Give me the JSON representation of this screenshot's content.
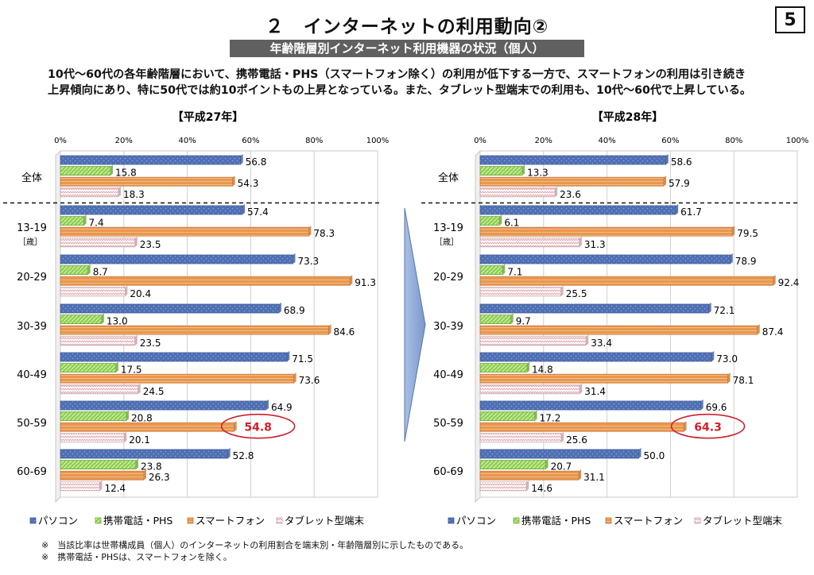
{
  "page_number": "5",
  "title": "２　インターネットの利用動向②",
  "subtitle": "年齢階層別インターネット利用機器の状況（個人）",
  "description": [
    "10代～60代の各年齢階層において、携帯電話・PHS（スマートフォン除く）の利用が低下する一方で、スマートフォンの利用は引き続き",
    "上昇傾向にあり、特に50代では約10ポイントもの上昇となっている。また、タブレット型端末での利用も、10代～60代で上昇している。"
  ],
  "footnotes": [
    "※　当該比率は世帯構成員（個人）のインターネットの利用割合を端末別・年齢階層別に示したものである。",
    "※　携帯電話・PHSは、スマートフォンを除く。"
  ],
  "age_unit_label": "［歳］",
  "colors": {
    "pc": "#4e6fb3",
    "mobile": "#8ccf4f",
    "smartphone": "#e8974f",
    "tablet": "#f2d8dc",
    "highlight": "#d0202a",
    "arrow": "#8aa7d6"
  },
  "chart_data": [
    {
      "type": "bar",
      "title": "【平成27年】",
      "categories": [
        "全体",
        "13-19",
        "20-29",
        "30-39",
        "40-49",
        "50-59",
        "60-69"
      ],
      "x_ticks": [
        "0%",
        "20%",
        "40%",
        "60%",
        "80%",
        "100%"
      ],
      "xlim": [
        0,
        100
      ],
      "series": [
        {
          "name": "パソコン",
          "values": [
            56.8,
            57.4,
            73.3,
            68.9,
            71.5,
            64.9,
            52.8
          ]
        },
        {
          "name": "携帯電話・PHS",
          "values": [
            15.8,
            7.4,
            8.7,
            13.0,
            17.5,
            20.8,
            23.8
          ]
        },
        {
          "name": "スマートフォン",
          "values": [
            54.3,
            78.3,
            91.3,
            84.6,
            73.6,
            54.8,
            26.3
          ]
        },
        {
          "name": "タブレット型端末",
          "values": [
            18.3,
            23.5,
            20.4,
            23.5,
            24.5,
            20.1,
            12.4
          ]
        }
      ],
      "value_labels": [
        [
          "56.8",
          "15.8",
          "54.3",
          "18.3"
        ],
        [
          "57.4",
          "7.4",
          "78.3",
          "23.5"
        ],
        [
          "73.3",
          "8.7",
          "91.3",
          "20.4"
        ],
        [
          "68.9",
          "13.0",
          "84.6",
          "23.5"
        ],
        [
          "71.5",
          "17.5",
          "73.6",
          "24.5"
        ],
        [
          "64.9",
          "20.8",
          "54.8",
          "20.1"
        ],
        [
          "52.8",
          "23.8",
          "26.3",
          "12.4"
        ]
      ],
      "highlight": {
        "category": "50-59",
        "series": "スマートフォン",
        "value": "54.8"
      },
      "legend_position": "bottom"
    },
    {
      "type": "bar",
      "title": "【平成28年】",
      "categories": [
        "全体",
        "13-19",
        "20-29",
        "30-39",
        "40-49",
        "50-59",
        "60-69"
      ],
      "x_ticks": [
        "0%",
        "20%",
        "40%",
        "60%",
        "80%",
        "100%"
      ],
      "xlim": [
        0,
        100
      ],
      "series": [
        {
          "name": "パソコン",
          "values": [
            58.6,
            61.7,
            78.9,
            72.1,
            73.0,
            69.6,
            50.0
          ]
        },
        {
          "name": "携帯電話・PHS",
          "values": [
            13.3,
            6.1,
            7.1,
            9.7,
            14.8,
            17.2,
            20.7
          ]
        },
        {
          "name": "スマートフォン",
          "values": [
            57.9,
            79.5,
            92.4,
            87.4,
            78.1,
            64.3,
            31.1
          ]
        },
        {
          "name": "タブレット型端末",
          "values": [
            23.6,
            31.3,
            25.5,
            33.4,
            31.4,
            25.6,
            14.6
          ]
        }
      ],
      "value_labels": [
        [
          "58.6",
          "13.3",
          "57.9",
          "23.6"
        ],
        [
          "61.7",
          "6.1",
          "79.5",
          "31.3"
        ],
        [
          "78.9",
          "7.1",
          "92.4",
          "25.5"
        ],
        [
          "72.1",
          "9.7",
          "87.4",
          "33.4"
        ],
        [
          "73.0",
          "14.8",
          "78.1",
          "31.4"
        ],
        [
          "69.6",
          "17.2",
          "64.3",
          "25.6"
        ],
        [
          "50.0",
          "20.7",
          "31.1",
          "14.6"
        ]
      ],
      "highlight": {
        "category": "50-59",
        "series": "スマートフォン",
        "value": "64.3"
      },
      "legend_position": "bottom"
    }
  ]
}
